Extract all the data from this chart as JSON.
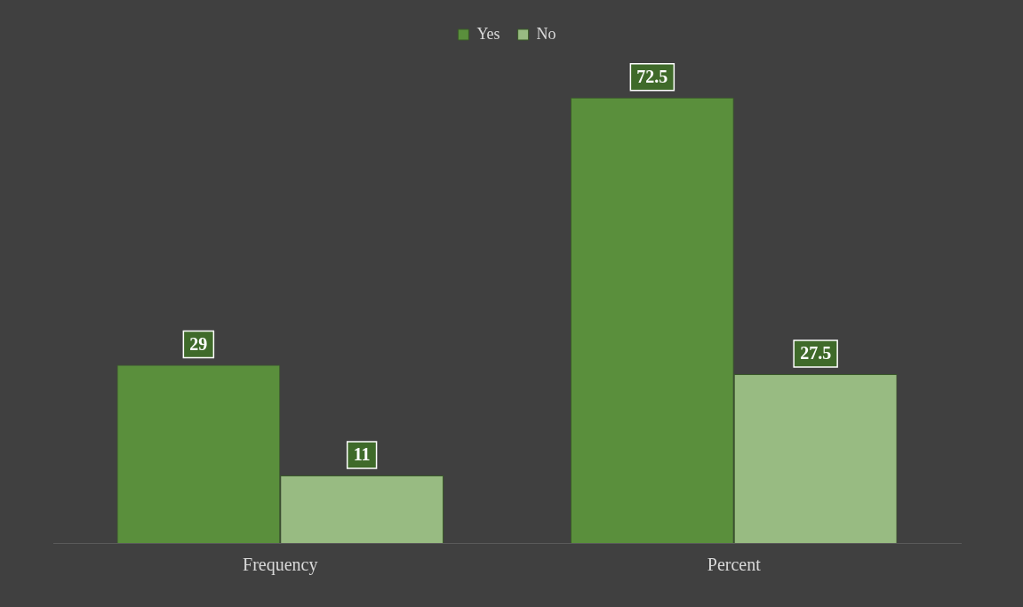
{
  "chart_data": {
    "type": "bar",
    "categories": [
      "Frequency",
      "Percent"
    ],
    "series": [
      {
        "name": "Yes",
        "color": "#5a8f3c",
        "values": [
          29,
          72.5
        ]
      },
      {
        "name": "No",
        "color": "#98bb82",
        "values": [
          11,
          27.5
        ]
      }
    ],
    "data_labels": true,
    "legend": "top",
    "grid": false
  }
}
